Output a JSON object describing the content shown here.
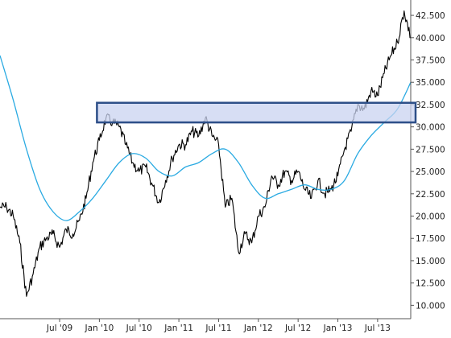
{
  "colors": {
    "price": "#000000",
    "moving_average": "#2aaae2",
    "zone_fill": "#c9d3f0",
    "zone_stroke": "#2d4f88",
    "axis": "#555555"
  },
  "chart_data": {
    "type": "line",
    "title": "",
    "xlabel": "",
    "ylabel": "",
    "ylim": [
      8.5,
      43.5
    ],
    "x_range": [
      "2008-10",
      "2013-12"
    ],
    "grid": false,
    "y_axis_side": "right",
    "y_ticks": [
      10,
      12.5,
      15,
      17.5,
      20,
      22.5,
      25,
      27.5,
      30,
      32.5,
      35,
      37.5,
      40,
      42.5
    ],
    "y_tick_labels": [
      "10.000",
      "12.500",
      "15.000",
      "17.500",
      "20.000",
      "22.500",
      "25.000",
      "27.500",
      "30.000",
      "32.500",
      "35.000",
      "37.500",
      "40.000",
      "42.500"
    ],
    "x_ticks": [
      "2009-07",
      "2010-01",
      "2010-07",
      "2011-01",
      "2011-07",
      "2012-01",
      "2012-07",
      "2013-01",
      "2013-07"
    ],
    "x_tick_labels": [
      "Jul '09",
      "Jan '10",
      "Jul '10",
      "Jan '11",
      "Jul '11",
      "Jan '12",
      "Jul '12",
      "Jan '13",
      "Jul '13"
    ],
    "series": [
      {
        "style": "jagged-black",
        "x": [
          "2008-10",
          "2008-11",
          "2008-12",
          "2009-01",
          "2009-02",
          "2009-03",
          "2009-04",
          "2009-05",
          "2009-06",
          "2009-07",
          "2009-08",
          "2009-09",
          "2009-10",
          "2009-11",
          "2009-12",
          "2010-01",
          "2010-02",
          "2010-03",
          "2010-04",
          "2010-05",
          "2010-06",
          "2010-07",
          "2010-08",
          "2010-09",
          "2010-10",
          "2010-11",
          "2010-12",
          "2011-01",
          "2011-02",
          "2011-03",
          "2011-04",
          "2011-05",
          "2011-06",
          "2011-07",
          "2011-08",
          "2011-09",
          "2011-10",
          "2011-11",
          "2011-12",
          "2012-01",
          "2012-02",
          "2012-03",
          "2012-04",
          "2012-05",
          "2012-06",
          "2012-07",
          "2012-08",
          "2012-09",
          "2012-10",
          "2012-11",
          "2012-12",
          "2013-01",
          "2013-02",
          "2013-03",
          "2013-04",
          "2013-05",
          "2013-06",
          "2013-07",
          "2013-08",
          "2013-09",
          "2013-10",
          "2013-11",
          "2013-12"
        ],
        "values": [
          21,
          21,
          20,
          17,
          11,
          13.5,
          16.5,
          17.5,
          18,
          16.5,
          18.5,
          18,
          19.5,
          22,
          26,
          28.5,
          31,
          30.5,
          30,
          28,
          26,
          25,
          25.5,
          23.5,
          21.5,
          24,
          26.5,
          28,
          28,
          29.5,
          29,
          31,
          29,
          28,
          21,
          22,
          16,
          18,
          17,
          20,
          21,
          24.5,
          23.5,
          25,
          24,
          25,
          23,
          22,
          24,
          22.5,
          23,
          24.5,
          27.5,
          29.5,
          32.5,
          32,
          34,
          33.5,
          36,
          38,
          39.5,
          43,
          40
        ]
      },
      {
        "style": "smooth-blue",
        "x": [
          "2008-10",
          "2008-12",
          "2009-02",
          "2009-04",
          "2009-06",
          "2009-08",
          "2009-10",
          "2009-12",
          "2010-02",
          "2010-04",
          "2010-06",
          "2010-08",
          "2010-10",
          "2010-12",
          "2011-02",
          "2011-04",
          "2011-06",
          "2011-08",
          "2011-10",
          "2011-12",
          "2012-02",
          "2012-04",
          "2012-06",
          "2012-08",
          "2012-10",
          "2012-12",
          "2013-02",
          "2013-04",
          "2013-06",
          "2013-08",
          "2013-10",
          "2013-12"
        ],
        "values": [
          38,
          33,
          27.5,
          23,
          20.5,
          19.5,
          20.5,
          22,
          24,
          26,
          27,
          26.5,
          25,
          24.5,
          25.5,
          26,
          27,
          27.5,
          26,
          23.5,
          22,
          22.5,
          23,
          23.5,
          23,
          23,
          24,
          27,
          29,
          30.5,
          32,
          35
        ]
      }
    ],
    "annotations": [
      {
        "type": "shaded-band",
        "y_from": 30.5,
        "y_to": 32.7,
        "x_from": "2010-01",
        "x_to": "2013-12"
      }
    ]
  }
}
